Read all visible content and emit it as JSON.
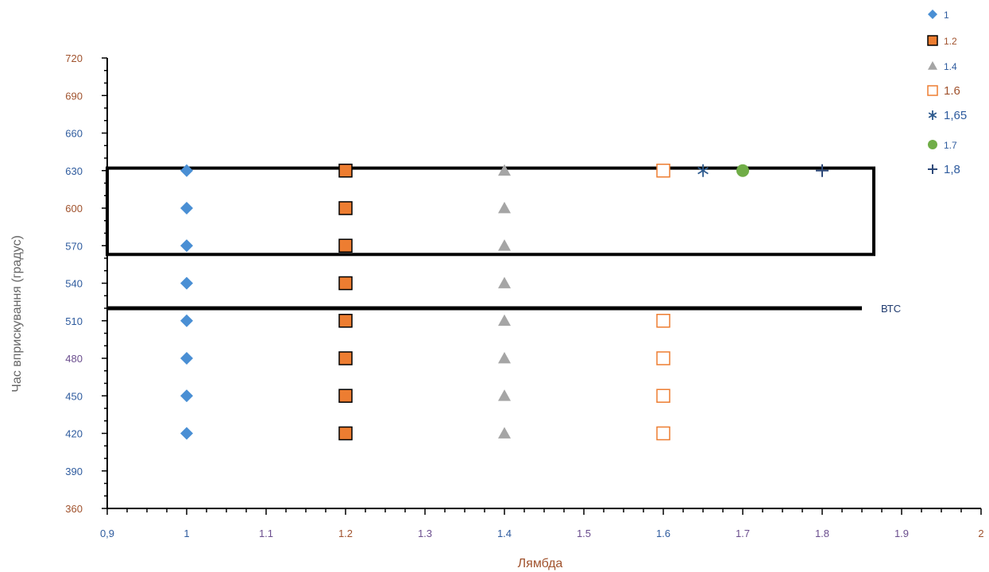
{
  "chart_data": {
    "type": "scatter",
    "xlabel": "Лямбда",
    "ylabel": "Час вприскування (градус)",
    "xlim": [
      0.9,
      2.0
    ],
    "ylim": [
      360,
      720
    ],
    "x_tick_labels": [
      "0,9",
      "1",
      "1.1",
      "1.2",
      "1.3",
      "1.4",
      "1.5",
      "1.6",
      "1.7",
      "1.8",
      "1.9",
      "2"
    ],
    "y_tick_labels": [
      "360",
      "390",
      "420",
      "450",
      "480",
      "510",
      "540",
      "570",
      "600",
      "630",
      "660",
      "690",
      "720"
    ],
    "series": [
      {
        "name": "1",
        "marker": "diamond",
        "color": "#4a8fd4",
        "points": [
          {
            "x": 1,
            "y": 420
          },
          {
            "x": 1,
            "y": 450
          },
          {
            "x": 1,
            "y": 480
          },
          {
            "x": 1,
            "y": 510
          },
          {
            "x": 1,
            "y": 540
          },
          {
            "x": 1,
            "y": 570
          },
          {
            "x": 1,
            "y": 600
          },
          {
            "x": 1,
            "y": 630
          }
        ]
      },
      {
        "name": "1.2",
        "marker": "square-filled",
        "color": "#ed7d31",
        "points": [
          {
            "x": 1.2,
            "y": 420
          },
          {
            "x": 1.2,
            "y": 450
          },
          {
            "x": 1.2,
            "y": 480
          },
          {
            "x": 1.2,
            "y": 510
          },
          {
            "x": 1.2,
            "y": 540
          },
          {
            "x": 1.2,
            "y": 570
          },
          {
            "x": 1.2,
            "y": 600
          },
          {
            "x": 1.2,
            "y": 630
          }
        ]
      },
      {
        "name": "1.4",
        "marker": "triangle",
        "color": "#a5a5a5",
        "points": [
          {
            "x": 1.4,
            "y": 420
          },
          {
            "x": 1.4,
            "y": 450
          },
          {
            "x": 1.4,
            "y": 480
          },
          {
            "x": 1.4,
            "y": 510
          },
          {
            "x": 1.4,
            "y": 540
          },
          {
            "x": 1.4,
            "y": 570
          },
          {
            "x": 1.4,
            "y": 600
          },
          {
            "x": 1.4,
            "y": 630
          }
        ]
      },
      {
        "name": "1.6",
        "marker": "square-open",
        "color": "#ed7d31",
        "points": [
          {
            "x": 1.6,
            "y": 420
          },
          {
            "x": 1.6,
            "y": 450
          },
          {
            "x": 1.6,
            "y": 480
          },
          {
            "x": 1.6,
            "y": 510
          },
          {
            "x": 1.6,
            "y": 630
          }
        ]
      },
      {
        "name": "1,65",
        "marker": "star",
        "color": "#2e5b8e",
        "points": [
          {
            "x": 1.65,
            "y": 630
          }
        ]
      },
      {
        "name": "1.7",
        "marker": "circle",
        "color": "#70ad47",
        "points": [
          {
            "x": 1.7,
            "y": 630
          }
        ]
      },
      {
        "name": "1,8",
        "marker": "plus",
        "color": "#2e4a7a",
        "points": [
          {
            "x": 1.8,
            "y": 630
          }
        ]
      }
    ],
    "annotations": [
      {
        "type": "rectangle",
        "x_range": [
          0.9,
          1.865
        ],
        "y_range": [
          563,
          632
        ]
      },
      {
        "type": "hline",
        "y": 520,
        "x_range": [
          0.9,
          1.85
        ],
        "label": "ВТС"
      }
    ],
    "legend_position": "top-right",
    "grid": false
  },
  "colors": {
    "axis": "#000000",
    "x_title": "#a0522d",
    "y_title": "#666666",
    "annotation_label": "#1f3a6e"
  }
}
